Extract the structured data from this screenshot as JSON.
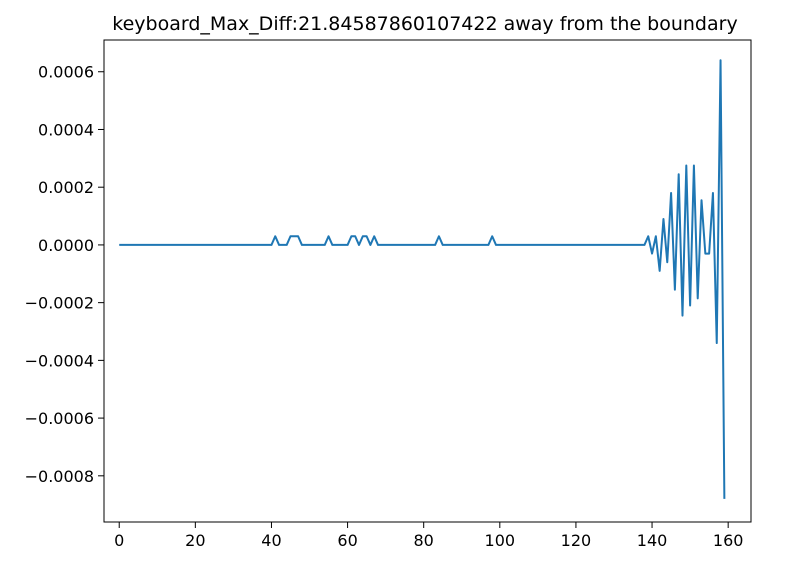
{
  "chart_data": {
    "type": "line",
    "title": "keyboard_Max_Diff:21.84587860107422 away from the boundary",
    "xlabel": "",
    "ylabel": "",
    "xlim": [
      -4,
      166
    ],
    "ylim": [
      -0.00096,
      0.00071
    ],
    "x_ticks": [
      0,
      20,
      40,
      60,
      80,
      100,
      120,
      140,
      160
    ],
    "y_ticks": [
      -0.0008,
      -0.0006,
      -0.0004,
      -0.0002,
      0.0,
      0.0002,
      0.0004,
      0.0006
    ],
    "x_tick_labels": [
      "0",
      "20",
      "40",
      "60",
      "80",
      "100",
      "120",
      "140",
      "160"
    ],
    "y_tick_labels": [
      "−0.0008",
      "−0.0006",
      "−0.0004",
      "−0.0002",
      "0.0000",
      "0.0002",
      "0.0004",
      "0.0006"
    ],
    "grid": false,
    "series": [
      {
        "color": "#1f77b4",
        "x": [
          0,
          40,
          41,
          42,
          43,
          44,
          45,
          46,
          47,
          48,
          54,
          55,
          56,
          60,
          61,
          62,
          63,
          64,
          65,
          66,
          67,
          68,
          69,
          83,
          84,
          85,
          97,
          98,
          99,
          138,
          139,
          140,
          141,
          142,
          143,
          144,
          145,
          146,
          147,
          148,
          149,
          150,
          151,
          152,
          153,
          154,
          155,
          156,
          157,
          158,
          159
        ],
        "y": [
          0,
          0,
          3e-05,
          0,
          0,
          0,
          3e-05,
          3e-05,
          3e-05,
          0,
          0,
          3e-05,
          0,
          0,
          3e-05,
          3e-05,
          0,
          3e-05,
          3e-05,
          0,
          3e-05,
          0,
          0,
          0,
          3e-05,
          0,
          0,
          3e-05,
          0,
          0,
          3e-05,
          -3e-05,
          3e-05,
          -9e-05,
          9e-05,
          -6e-05,
          0.00018,
          -0.000155,
          0.000245,
          -0.000245,
          0.000275,
          -0.00021,
          0.000275,
          -0.000185,
          0.000155,
          -3e-05,
          -3e-05,
          0.00018,
          -0.00034,
          0.00064,
          -0.00088
        ]
      }
    ]
  }
}
